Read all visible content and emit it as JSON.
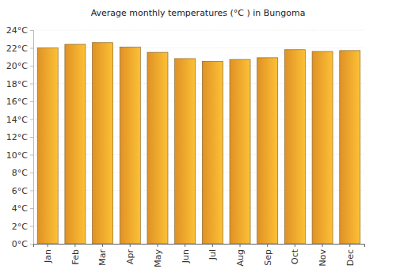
{
  "chart_data": {
    "type": "bar",
    "title": "Average monthly temperatures (°C ) in Bungoma",
    "categories": [
      "Jan",
      "Feb",
      "Mar",
      "Apr",
      "May",
      "Jun",
      "Jul",
      "Aug",
      "Sep",
      "Oct",
      "Nov",
      "Dec"
    ],
    "values": [
      22.0,
      22.4,
      22.6,
      22.1,
      21.5,
      20.8,
      20.5,
      20.7,
      20.9,
      21.8,
      21.6,
      21.7
    ],
    "color": "#f9a12a",
    "ylim": [
      0,
      24
    ],
    "yticks": [
      {
        "value": 0,
        "label": "0°C"
      },
      {
        "value": 2,
        "label": "2°C"
      },
      {
        "value": 4,
        "label": "4°C"
      },
      {
        "value": 6,
        "label": "6°C"
      },
      {
        "value": 8,
        "label": "8°C"
      },
      {
        "value": 10,
        "label": "10°C"
      },
      {
        "value": 12,
        "label": "12°C"
      },
      {
        "value": 14,
        "label": "14°C"
      },
      {
        "value": 16,
        "label": "16°C"
      },
      {
        "value": 18,
        "label": "18°C"
      },
      {
        "value": 20,
        "label": "20°C"
      },
      {
        "value": 22,
        "label": "22°C"
      },
      {
        "value": 24,
        "label": "24°C"
      }
    ],
    "grid": true
  }
}
